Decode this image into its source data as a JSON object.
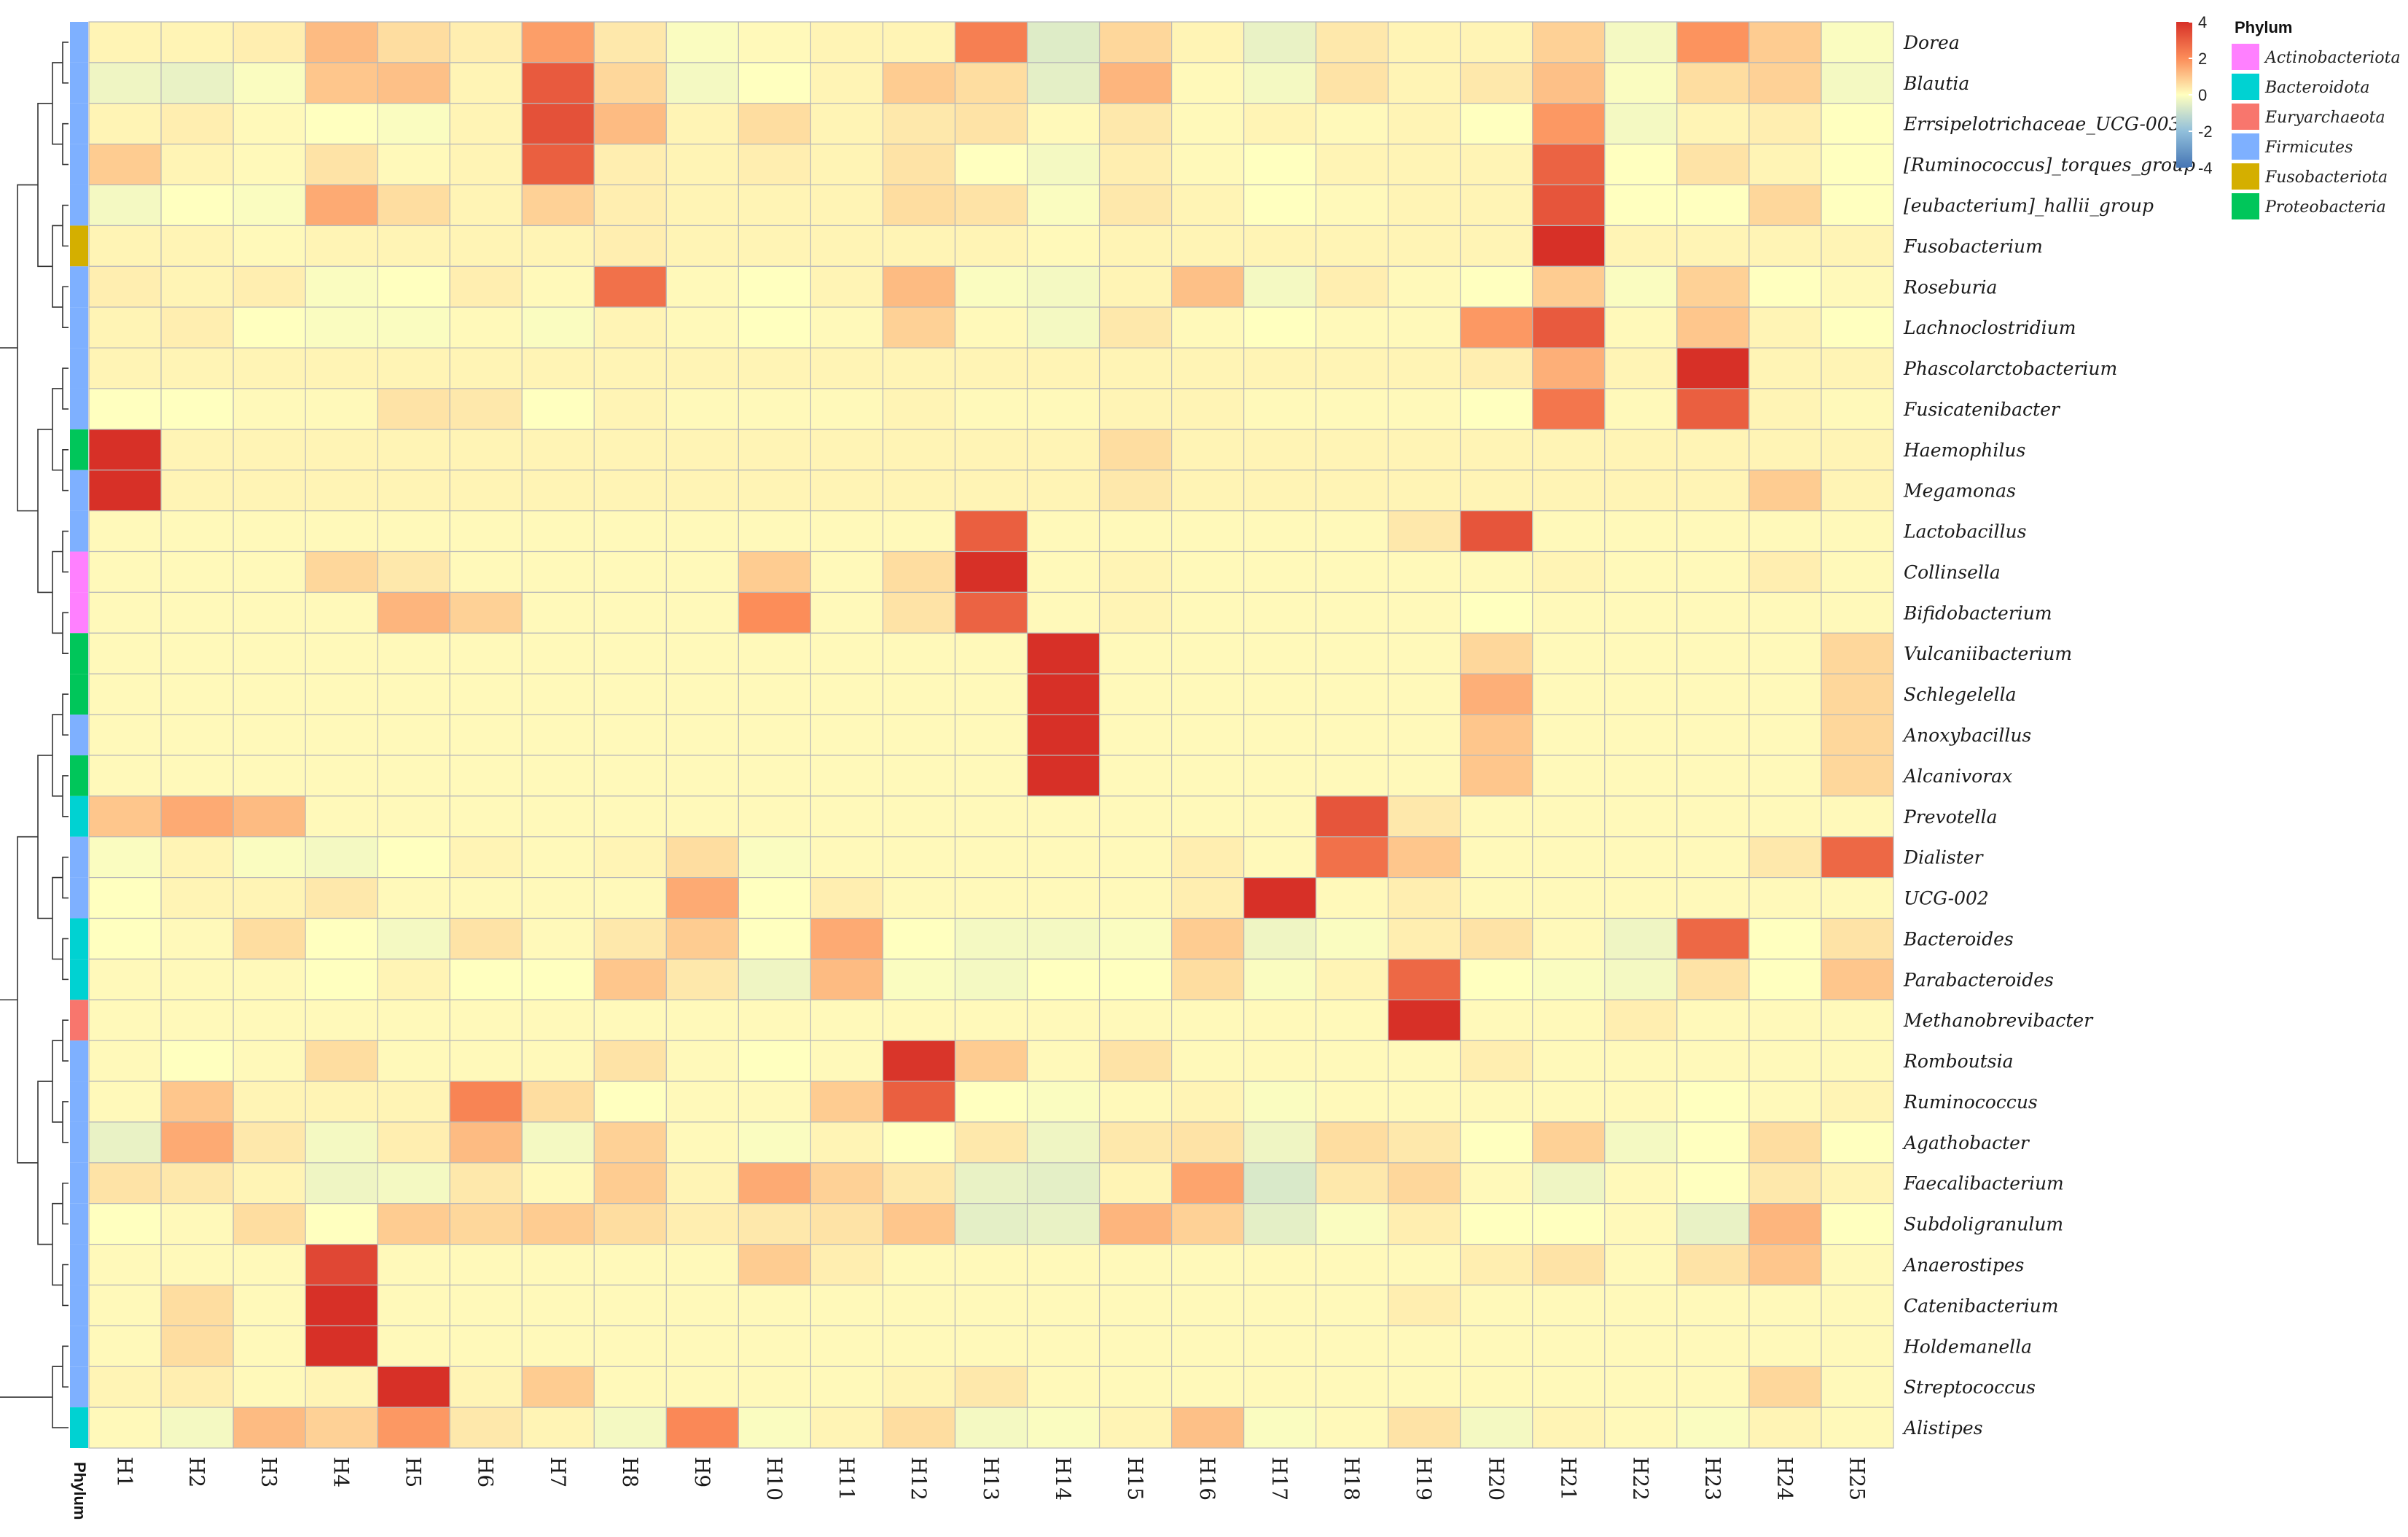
{
  "chart_data": {
    "type": "heatmap",
    "title": "",
    "columns": [
      "H1",
      "H2",
      "H3",
      "H4",
      "H5",
      "H6",
      "H7",
      "H8",
      "H9",
      "H10",
      "H11",
      "H12",
      "H13",
      "H14",
      "H15",
      "H16",
      "H17",
      "H18",
      "H19",
      "H20",
      "H21",
      "H22",
      "H23",
      "H24",
      "H25"
    ],
    "rows": [
      {
        "name": "Dorea",
        "phylum": "Firmicutes",
        "values": [
          0.2,
          0.2,
          0.3,
          1.2,
          0.6,
          0.3,
          1.7,
          0.4,
          -0.1,
          0.1,
          0.2,
          0.2,
          2.3,
          -0.6,
          0.7,
          0.2,
          -0.4,
          0.4,
          0.2,
          0.2,
          0.8,
          -0.2,
          1.9,
          0.9,
          -0.1
        ]
      },
      {
        "name": "Blautia",
        "phylum": "Firmicutes",
        "values": [
          -0.3,
          -0.4,
          -0.1,
          1.0,
          1.1,
          0.2,
          3.1,
          0.7,
          -0.2,
          0.0,
          0.2,
          0.9,
          0.6,
          -0.5,
          1.3,
          0.1,
          -0.2,
          0.5,
          0.2,
          0.4,
          1.1,
          -0.1,
          0.6,
          0.8,
          -0.2
        ]
      },
      {
        "name": "Errsipelotrichaceae_UCG-003",
        "phylum": "Firmicutes",
        "values": [
          0.2,
          0.3,
          0.1,
          0.0,
          -0.1,
          0.2,
          3.3,
          1.2,
          0.2,
          0.6,
          0.2,
          0.4,
          0.5,
          0.1,
          0.4,
          0.1,
          0.2,
          0.1,
          0.2,
          0.0,
          1.8,
          -0.2,
          0.2,
          0.3,
          0.0
        ]
      },
      {
        "name": "[Ruminococcus]_torques_group",
        "phylum": "Firmicutes",
        "values": [
          0.9,
          0.2,
          0.1,
          0.5,
          0.1,
          0.2,
          3.0,
          0.3,
          0.2,
          0.3,
          0.2,
          0.5,
          0.0,
          -0.2,
          0.3,
          0.1,
          0.0,
          0.2,
          0.2,
          0.2,
          2.9,
          0.0,
          0.5,
          0.2,
          0.0
        ]
      },
      {
        "name": "[eubacterium]_hallii_group",
        "phylum": "Firmicutes",
        "values": [
          -0.2,
          0.0,
          -0.1,
          1.5,
          0.6,
          0.2,
          0.8,
          0.3,
          0.2,
          0.2,
          0.2,
          0.6,
          0.5,
          -0.1,
          0.4,
          0.2,
          0.0,
          0.1,
          0.2,
          0.2,
          3.2,
          0.0,
          0.0,
          0.7,
          0.0
        ]
      },
      {
        "name": "Fusobacterium",
        "phylum": "Fusobacteriota",
        "values": [
          0.2,
          0.2,
          0.1,
          0.2,
          0.2,
          0.2,
          0.2,
          0.3,
          0.2,
          0.2,
          0.2,
          0.2,
          0.2,
          0.1,
          0.2,
          0.2,
          0.2,
          0.2,
          0.2,
          0.2,
          4.4,
          0.2,
          0.2,
          0.2,
          0.2
        ]
      },
      {
        "name": "Roseburia",
        "phylum": "Firmicutes",
        "values": [
          0.3,
          0.2,
          0.3,
          -0.1,
          0.0,
          0.3,
          0.1,
          2.6,
          0.1,
          0.0,
          0.2,
          1.2,
          -0.1,
          -0.2,
          0.2,
          1.1,
          -0.2,
          0.3,
          0.1,
          0.0,
          0.9,
          -0.1,
          0.8,
          0.0,
          0.1
        ]
      },
      {
        "name": "Lachnoclostridium",
        "phylum": "Firmicutes",
        "values": [
          0.2,
          0.3,
          0.0,
          -0.1,
          -0.1,
          0.1,
          -0.1,
          0.2,
          0.1,
          0.0,
          0.1,
          0.8,
          0.1,
          -0.2,
          0.4,
          0.1,
          0.0,
          0.1,
          0.1,
          1.8,
          3.1,
          0.1,
          1.0,
          0.2,
          0.0
        ]
      },
      {
        "name": "Phascolarctobacterium",
        "phylum": "Firmicutes",
        "values": [
          0.2,
          0.2,
          0.2,
          0.2,
          0.2,
          0.2,
          0.2,
          0.2,
          0.2,
          0.2,
          0.2,
          0.2,
          0.2,
          0.2,
          0.2,
          0.2,
          0.2,
          0.2,
          0.2,
          0.3,
          1.4,
          0.2,
          4.2,
          0.2,
          0.2
        ]
      },
      {
        "name": "Fusicatenibacter",
        "phylum": "Firmicutes",
        "values": [
          0.0,
          0.0,
          0.1,
          0.1,
          0.5,
          0.4,
          0.0,
          0.2,
          0.1,
          0.1,
          0.1,
          0.2,
          0.1,
          0.1,
          0.2,
          0.2,
          0.1,
          0.1,
          0.1,
          0.0,
          2.5,
          0.1,
          3.0,
          0.2,
          0.1
        ]
      },
      {
        "name": "Haemophilus",
        "phylum": "Proteobacteria",
        "values": [
          4.4,
          0.2,
          0.2,
          0.2,
          0.2,
          0.2,
          0.2,
          0.2,
          0.2,
          0.2,
          0.2,
          0.2,
          0.2,
          0.2,
          0.6,
          0.2,
          0.2,
          0.2,
          0.2,
          0.2,
          0.2,
          0.2,
          0.2,
          0.2,
          0.2
        ]
      },
      {
        "name": "Megamonas",
        "phylum": "Firmicutes",
        "values": [
          4.2,
          0.2,
          0.2,
          0.2,
          0.2,
          0.2,
          0.2,
          0.2,
          0.2,
          0.2,
          0.2,
          0.2,
          0.2,
          0.2,
          0.4,
          0.2,
          0.2,
          0.2,
          0.2,
          0.2,
          0.2,
          0.2,
          0.2,
          0.9,
          0.2
        ]
      },
      {
        "name": "Lactobacillus",
        "phylum": "Firmicutes",
        "values": [
          0.1,
          0.1,
          0.1,
          0.1,
          0.1,
          0.1,
          0.1,
          0.1,
          0.1,
          0.1,
          0.1,
          0.1,
          3.0,
          0.1,
          0.1,
          0.1,
          0.1,
          0.1,
          0.4,
          3.2,
          0.1,
          0.1,
          0.1,
          0.1,
          0.1
        ]
      },
      {
        "name": "Collinsella",
        "phylum": "Actinobacteriota",
        "values": [
          0.1,
          0.1,
          0.1,
          0.7,
          0.4,
          0.1,
          0.1,
          0.1,
          0.1,
          0.9,
          0.1,
          0.6,
          4.1,
          0.1,
          0.2,
          0.1,
          0.1,
          0.1,
          0.1,
          0.1,
          0.2,
          0.1,
          0.1,
          0.3,
          0.1
        ]
      },
      {
        "name": "Bifidobacterium",
        "phylum": "Actinobacteriota",
        "values": [
          0.1,
          0.1,
          0.1,
          0.1,
          1.3,
          0.8,
          0.1,
          0.1,
          0.1,
          2.0,
          0.1,
          0.5,
          2.9,
          0.1,
          0.2,
          0.1,
          0.1,
          0.1,
          0.1,
          0.0,
          0.1,
          0.1,
          0.1,
          0.1,
          0.1
        ]
      },
      {
        "name": "Vulcaniibacterium",
        "phylum": "Proteobacteria",
        "values": [
          0.1,
          0.1,
          0.1,
          0.1,
          0.1,
          0.1,
          0.1,
          0.1,
          0.1,
          0.1,
          0.1,
          0.1,
          0.1,
          4.3,
          0.1,
          0.1,
          0.1,
          0.1,
          0.1,
          0.7,
          0.1,
          0.1,
          0.1,
          0.1,
          0.7
        ]
      },
      {
        "name": "Schlegelella",
        "phylum": "Proteobacteria",
        "values": [
          0.1,
          0.1,
          0.1,
          0.1,
          0.1,
          0.1,
          0.1,
          0.1,
          0.1,
          0.1,
          0.1,
          0.1,
          0.1,
          4.1,
          0.1,
          0.1,
          0.1,
          0.1,
          0.1,
          1.4,
          0.1,
          0.1,
          0.1,
          0.1,
          0.7
        ]
      },
      {
        "name": "Anoxybacillus",
        "phylum": "Firmicutes",
        "values": [
          0.1,
          0.1,
          0.1,
          0.1,
          0.1,
          0.1,
          0.1,
          0.1,
          0.1,
          0.1,
          0.1,
          0.1,
          0.1,
          4.1,
          0.1,
          0.1,
          0.1,
          0.1,
          0.1,
          1.0,
          0.1,
          0.1,
          0.1,
          0.1,
          0.7
        ]
      },
      {
        "name": "Alcanivorax",
        "phylum": "Proteobacteria",
        "values": [
          0.1,
          0.1,
          0.1,
          0.1,
          0.1,
          0.1,
          0.1,
          0.1,
          0.1,
          0.1,
          0.1,
          0.1,
          0.1,
          4.1,
          0.1,
          0.1,
          0.1,
          0.1,
          0.1,
          1.0,
          0.1,
          0.1,
          0.1,
          0.1,
          0.7
        ]
      },
      {
        "name": "Prevotella",
        "phylum": "Bacteroidota",
        "values": [
          1.0,
          1.5,
          1.2,
          0.1,
          0.1,
          0.1,
          0.1,
          0.1,
          0.1,
          0.1,
          0.1,
          0.1,
          0.1,
          0.1,
          0.1,
          0.1,
          0.1,
          3.2,
          0.4,
          0.1,
          0.1,
          0.1,
          0.1,
          0.1,
          0.1
        ]
      },
      {
        "name": "Dialister",
        "phylum": "Firmicutes",
        "values": [
          -0.1,
          0.2,
          -0.1,
          -0.2,
          0.0,
          0.2,
          0.1,
          0.2,
          0.6,
          -0.1,
          0.1,
          0.1,
          0.1,
          0.1,
          0.1,
          0.3,
          0.1,
          2.6,
          1.0,
          0.1,
          0.1,
          0.1,
          0.1,
          0.4,
          2.8
        ]
      },
      {
        "name": "UCG-002",
        "phylum": "Firmicutes",
        "values": [
          0.0,
          0.2,
          0.2,
          0.4,
          0.1,
          0.1,
          0.1,
          0.1,
          1.5,
          0.0,
          0.3,
          0.1,
          0.1,
          0.1,
          0.1,
          0.3,
          4.0,
          0.1,
          0.3,
          0.1,
          0.1,
          0.1,
          0.1,
          0.1,
          0.1
        ]
      },
      {
        "name": "Bacteroides",
        "phylum": "Bacteroidota",
        "values": [
          0.0,
          0.1,
          0.6,
          0.0,
          -0.2,
          0.5,
          0.1,
          0.4,
          0.9,
          0.0,
          1.5,
          0.0,
          -0.2,
          -0.2,
          -0.1,
          0.9,
          -0.3,
          -0.1,
          0.3,
          0.5,
          0.1,
          -0.3,
          2.8,
          0.0,
          0.5
        ]
      },
      {
        "name": "Parabacteroides",
        "phylum": "Bacteroidota",
        "values": [
          0.1,
          0.1,
          0.1,
          0.0,
          0.2,
          0.0,
          0.0,
          1.0,
          0.4,
          -0.3,
          1.2,
          -0.1,
          -0.2,
          0.0,
          0.0,
          0.6,
          -0.1,
          0.2,
          2.8,
          0.0,
          -0.1,
          -0.2,
          0.5,
          0.0,
          1.0
        ]
      },
      {
        "name": "Methanobrevibacter",
        "phylum": "Euryarchaeota",
        "values": [
          0.1,
          0.1,
          0.1,
          0.1,
          0.1,
          0.1,
          0.1,
          0.1,
          0.1,
          0.1,
          0.1,
          0.1,
          0.1,
          0.1,
          0.1,
          0.1,
          0.1,
          0.1,
          4.4,
          0.1,
          0.1,
          0.3,
          0.1,
          0.1,
          0.1
        ]
      },
      {
        "name": "Romboutsia",
        "phylum": "Firmicutes",
        "values": [
          0.1,
          0.0,
          0.1,
          0.6,
          0.1,
          0.1,
          0.1,
          0.5,
          0.1,
          0.0,
          0.1,
          3.9,
          0.9,
          0.1,
          0.5,
          0.1,
          0.1,
          0.1,
          0.1,
          0.3,
          0.1,
          0.1,
          0.1,
          0.1,
          0.1
        ]
      },
      {
        "name": "Ruminococcus",
        "phylum": "Firmicutes",
        "values": [
          0.1,
          1.0,
          0.2,
          0.2,
          0.2,
          2.2,
          0.6,
          0.0,
          0.1,
          0.1,
          0.9,
          3.0,
          0.0,
          -0.1,
          0.1,
          0.2,
          -0.1,
          0.1,
          0.1,
          0.1,
          0.1,
          0.1,
          0.0,
          0.1,
          0.2
        ]
      },
      {
        "name": "Agathobacter",
        "phylum": "Firmicutes",
        "values": [
          -0.4,
          1.5,
          0.4,
          -0.2,
          0.3,
          1.2,
          -0.2,
          0.8,
          0.1,
          -0.1,
          0.2,
          0.0,
          0.4,
          -0.3,
          0.4,
          0.5,
          -0.3,
          0.6,
          0.4,
          0.0,
          0.8,
          -0.2,
          0.0,
          0.6,
          0.0
        ]
      },
      {
        "name": "Faecalibacterium",
        "phylum": "Firmicutes",
        "values": [
          0.5,
          0.4,
          0.2,
          -0.3,
          -0.2,
          0.4,
          0.1,
          0.9,
          0.2,
          1.5,
          0.8,
          0.4,
          -0.4,
          -0.5,
          0.2,
          1.6,
          -0.7,
          0.4,
          0.7,
          0.1,
          -0.3,
          0.1,
          0.0,
          0.4,
          0.2
        ]
      },
      {
        "name": "Subdoligranulum",
        "phylum": "Firmicutes",
        "values": [
          0.0,
          0.1,
          0.6,
          0.0,
          0.9,
          0.7,
          0.9,
          0.6,
          0.3,
          0.4,
          0.5,
          1.0,
          -0.5,
          -0.4,
          1.3,
          0.8,
          -0.5,
          -0.1,
          0.3,
          0.0,
          0.0,
          0.1,
          -0.4,
          1.3,
          0.0
        ]
      },
      {
        "name": "Anaerostipes",
        "phylum": "Firmicutes",
        "values": [
          0.1,
          0.1,
          0.1,
          3.5,
          0.1,
          0.1,
          0.1,
          0.1,
          0.1,
          0.9,
          0.3,
          0.1,
          0.1,
          0.1,
          0.1,
          0.1,
          0.1,
          0.1,
          0.1,
          0.3,
          0.5,
          0.1,
          0.5,
          1.0,
          0.1
        ]
      },
      {
        "name": "Catenibacterium",
        "phylum": "Firmicutes",
        "values": [
          0.1,
          0.6,
          0.1,
          4.3,
          0.1,
          0.1,
          0.1,
          0.1,
          0.1,
          0.1,
          0.1,
          0.1,
          0.1,
          0.1,
          0.1,
          0.1,
          0.1,
          0.1,
          0.3,
          0.1,
          0.1,
          0.1,
          0.1,
          0.1,
          0.1
        ]
      },
      {
        "name": "Holdemanella",
        "phylum": "Firmicutes",
        "values": [
          0.1,
          0.6,
          0.1,
          4.3,
          0.1,
          0.1,
          0.1,
          0.1,
          0.1,
          0.1,
          0.1,
          0.1,
          0.1,
          0.1,
          0.1,
          0.1,
          0.1,
          0.1,
          0.1,
          0.1,
          0.1,
          0.1,
          0.1,
          0.1,
          0.1
        ]
      },
      {
        "name": "Streptococcus",
        "phylum": "Firmicutes",
        "values": [
          0.2,
          0.3,
          0.1,
          0.2,
          4.3,
          0.2,
          0.9,
          0.1,
          0.1,
          0.1,
          0.1,
          0.2,
          0.4,
          0.1,
          0.1,
          0.1,
          0.1,
          0.1,
          0.1,
          0.1,
          0.1,
          0.1,
          0.1,
          0.7,
          0.1
        ]
      },
      {
        "name": "Alistipes",
        "phylum": "Bacteroidota",
        "values": [
          0.1,
          -0.2,
          1.2,
          0.8,
          1.8,
          0.4,
          0.2,
          -0.2,
          2.1,
          -0.1,
          0.2,
          0.6,
          -0.2,
          -0.1,
          0.2,
          1.1,
          -0.1,
          0.1,
          0.5,
          -0.2,
          0.2,
          0.1,
          -0.1,
          0.2,
          0.1
        ]
      }
    ],
    "phylum_legend": {
      "title": "Phylum",
      "items": [
        {
          "name": "Actinobacteriota",
          "color": "#FF80FF"
        },
        {
          "name": "Bacteroidota",
          "color": "#00D2D2"
        },
        {
          "name": "Euryarchaeota",
          "color": "#F8766D"
        },
        {
          "name": "Firmicutes",
          "color": "#7EB0FF"
        },
        {
          "name": "Fusobacteriota",
          "color": "#D4AF00"
        },
        {
          "name": "Proteobacteria",
          "color": "#00C65A"
        }
      ]
    },
    "color_scale": {
      "min": -4,
      "max": 4,
      "ticks": [
        "4",
        "2",
        "0",
        "-2",
        "-4"
      ],
      "stops": [
        {
          "value": -4,
          "color": "#4575b4"
        },
        {
          "value": -2,
          "color": "#91bfdb"
        },
        {
          "value": 0,
          "color": "#ffffbf"
        },
        {
          "value": 2,
          "color": "#fc8d59"
        },
        {
          "value": 4,
          "color": "#d73027"
        }
      ]
    },
    "annotation_label": "Phylum"
  }
}
